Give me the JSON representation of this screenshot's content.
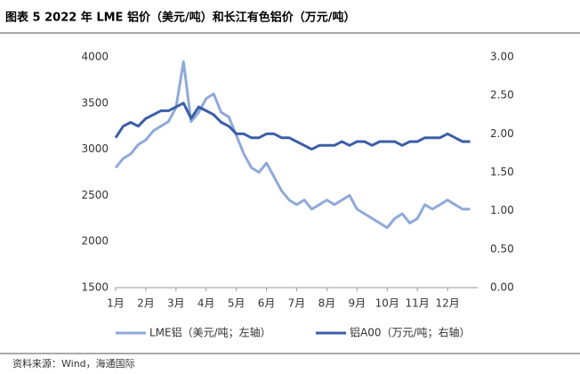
{
  "chart_data": {
    "type": "line",
    "title": "图表 5 2022 年 LME 铝价（美元/吨）和长江有色铝价（万元/吨）",
    "source": "资料来源：Wind，海通国际",
    "categories": [
      "1月",
      null,
      null,
      null,
      "2月",
      null,
      null,
      null,
      "3月",
      null,
      null,
      null,
      "4月",
      null,
      null,
      null,
      "5月",
      null,
      null,
      null,
      "6月",
      null,
      null,
      null,
      "7月",
      null,
      null,
      null,
      "8月",
      null,
      null,
      null,
      "9月",
      null,
      null,
      null,
      "10月",
      null,
      null,
      null,
      "11月",
      null,
      null,
      null,
      "12月",
      null,
      null,
      null
    ],
    "ylim": [
      1500,
      4000
    ],
    "yticks": [
      1500,
      2000,
      2500,
      3000,
      3500,
      4000
    ],
    "y2lim": [
      0,
      3
    ],
    "y2ticks": [
      {
        "value": 0,
        "label": "0.00"
      },
      {
        "value": 0.5,
        "label": "0.50"
      },
      {
        "value": 1,
        "label": "1.00"
      },
      {
        "value": 1.5,
        "label": "1.50"
      },
      {
        "value": 2,
        "label": "2.00"
      },
      {
        "value": 2.5,
        "label": "2.50"
      },
      {
        "value": 3,
        "label": "3.00"
      }
    ],
    "legend": "bottom",
    "series": [
      {
        "name": "LME铝（美元/吨；左轴）",
        "color": "#8fa9d9",
        "axis": "y",
        "values": [
          2800,
          2900,
          2950,
          3050,
          3100,
          3200,
          3250,
          3300,
          3450,
          3950,
          3300,
          3400,
          3550,
          3600,
          3400,
          3350,
          3150,
          2950,
          2800,
          2750,
          2850,
          2700,
          2550,
          2450,
          2400,
          2450,
          2350,
          2400,
          2450,
          2400,
          2450,
          2500,
          2350,
          2300,
          2250,
          2200,
          2150,
          2250,
          2300,
          2200,
          2250,
          2400,
          2350,
          2400,
          2450,
          2400,
          2350,
          2350
        ]
      },
      {
        "name": "铝A00（万元/吨；右轴）",
        "color": "#3a5ea8",
        "axis": "y2",
        "values": [
          1.95,
          2.1,
          2.15,
          2.1,
          2.2,
          2.25,
          2.3,
          2.3,
          2.35,
          2.4,
          2.2,
          2.35,
          2.3,
          2.25,
          2.15,
          2.1,
          2.0,
          2.0,
          1.95,
          1.95,
          2.0,
          2.0,
          1.95,
          1.95,
          1.9,
          1.85,
          1.8,
          1.85,
          1.85,
          1.85,
          1.9,
          1.85,
          1.9,
          1.9,
          1.85,
          1.9,
          1.9,
          1.9,
          1.85,
          1.9,
          1.9,
          1.95,
          1.95,
          1.95,
          2.0,
          1.95,
          1.9,
          1.9
        ]
      }
    ]
  }
}
